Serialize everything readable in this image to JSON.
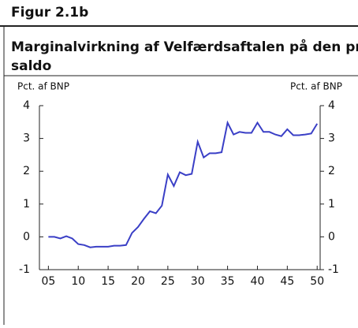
{
  "header": {
    "figure": "Figur 2.1b"
  },
  "chart_data": {
    "type": "line",
    "title": "Marginalvirkning af Velfærdsaftalen på den primære saldo",
    "ylabel": "Pct. af BNP",
    "y2label": "Pct. af BNP",
    "x": [
      5,
      6,
      7,
      8,
      9,
      10,
      11,
      12,
      13,
      14,
      15,
      16,
      17,
      18,
      19,
      20,
      21,
      22,
      23,
      24,
      25,
      26,
      27,
      28,
      29,
      30,
      31,
      32,
      33,
      34,
      35,
      36,
      37,
      38,
      39,
      40,
      41,
      42,
      43,
      44,
      45,
      46,
      47,
      48,
      49,
      50
    ],
    "series": [
      {
        "name": "Marginalvirkning",
        "color": "#3a3fc6",
        "values": [
          0,
          0,
          -0.05,
          0.02,
          -0.05,
          -0.22,
          -0.25,
          -0.32,
          -0.3,
          -0.3,
          -0.3,
          -0.27,
          -0.27,
          -0.25,
          0.12,
          0.3,
          0.55,
          0.78,
          0.72,
          0.95,
          1.9,
          1.55,
          1.97,
          1.88,
          1.92,
          2.9,
          2.42,
          2.55,
          2.55,
          2.58,
          3.48,
          3.12,
          3.2,
          3.17,
          3.17,
          3.48,
          3.2,
          3.2,
          3.12,
          3.07,
          3.28,
          3.1,
          3.1,
          3.12,
          3.15,
          3.45
        ]
      }
    ],
    "xlim": [
      3.5,
      50.5
    ],
    "xticks": [
      {
        "value": 5,
        "label": "05"
      },
      10,
      15,
      20,
      25,
      30,
      35,
      40,
      45,
      50
    ],
    "ylim": [
      -1,
      4
    ],
    "yticks": [
      -1,
      0,
      1,
      2,
      3,
      4
    ],
    "y2lim": [
      -1,
      4
    ],
    "y2ticks": [
      -1,
      0,
      1,
      2,
      3,
      4
    ]
  }
}
